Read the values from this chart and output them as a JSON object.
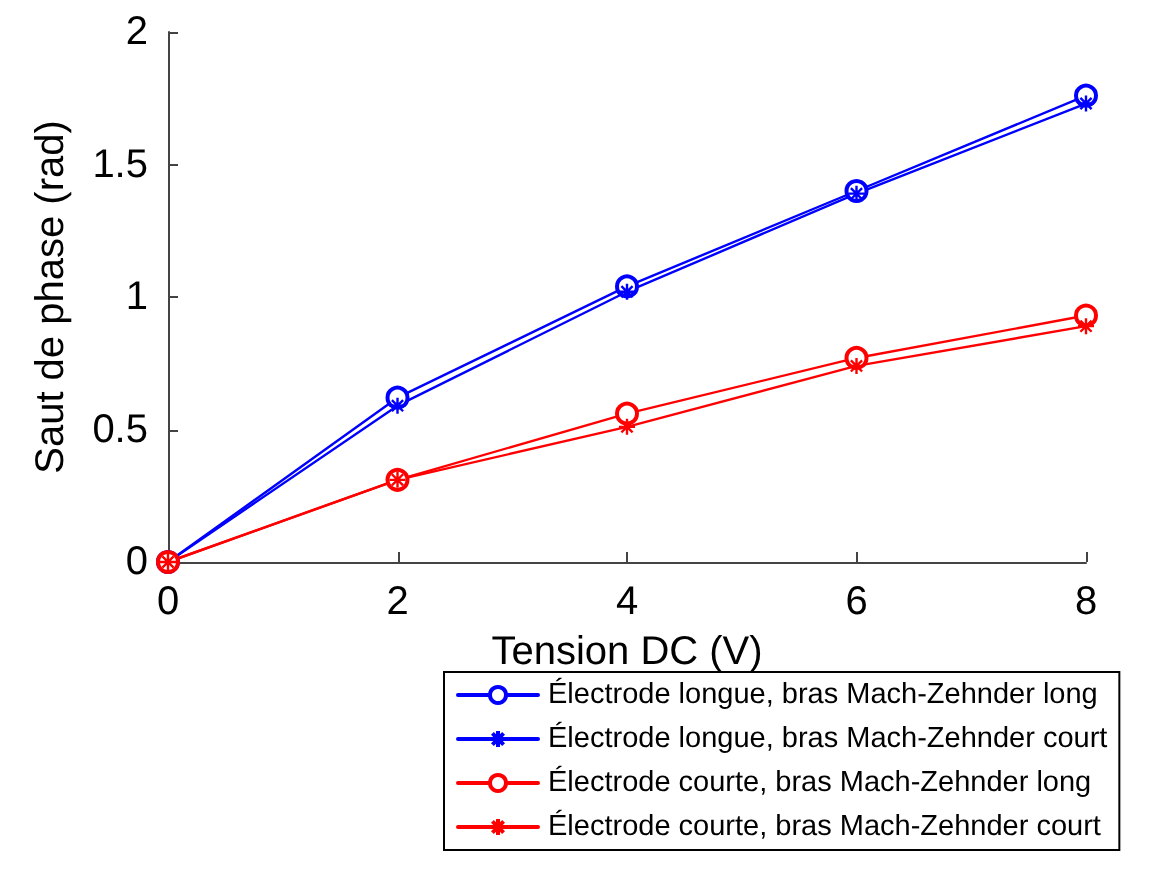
{
  "chart_data": {
    "type": "line",
    "xlabel": "Tension DC (V)",
    "ylabel": "Saut de phase (rad)",
    "x": [
      0,
      2,
      4,
      6,
      8
    ],
    "xlim": [
      0,
      8
    ],
    "xticks": [
      0,
      2,
      4,
      6,
      8
    ],
    "ylim": [
      0,
      2
    ],
    "yticks": [
      0,
      0.5,
      1,
      1.5,
      2
    ],
    "grid": false,
    "legend": "bottom",
    "series": [
      {
        "name": "Électrode longue, bras Mach-Zehnder long",
        "color": "#0000ff",
        "marker": "circle",
        "values": [
          0,
          0.62,
          1.04,
          1.4,
          1.76
        ]
      },
      {
        "name": "Électrode longue, bras Mach-Zehnder court",
        "color": "#0000ff",
        "marker": "cross",
        "values": [
          0,
          0.59,
          1.02,
          1.39,
          1.73
        ]
      },
      {
        "name": "Électrode courte, bras Mach-Zehnder long",
        "color": "#ff0000",
        "marker": "circle",
        "values": [
          0,
          0.31,
          0.56,
          0.77,
          0.93
        ]
      },
      {
        "name": "Électrode courte, bras Mach-Zehnder court",
        "color": "#ff0000",
        "marker": "cross",
        "values": [
          0,
          0.31,
          0.51,
          0.74,
          0.89
        ]
      }
    ]
  }
}
